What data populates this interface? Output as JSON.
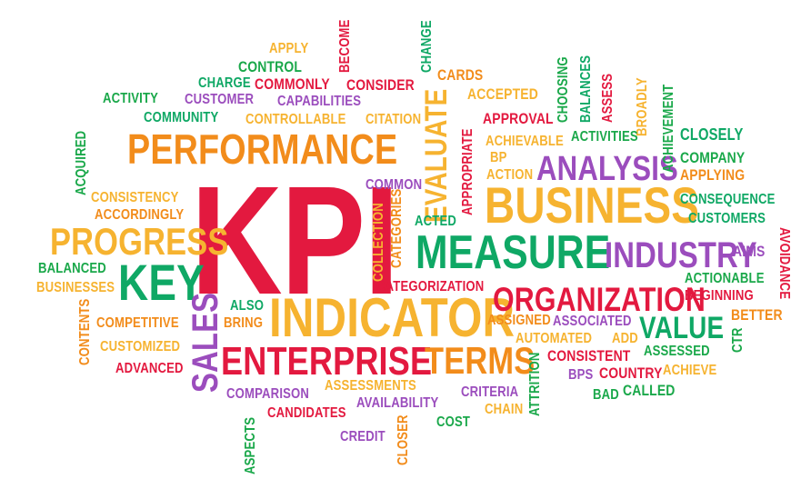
{
  "colors": {
    "green": "#1aa84a",
    "purple": "#9b4dbd",
    "orange": "#f28c1b",
    "red": "#e3193f",
    "gold": "#f6b330",
    "teal": "#0fa865"
  },
  "words": [
    {
      "text": "KPI",
      "color": "red"
    },
    {
      "text": "PERFORMANCE",
      "color": "orange"
    },
    {
      "text": "BUSINESS",
      "color": "gold"
    },
    {
      "text": "MEASURE",
      "color": "teal"
    },
    {
      "text": "INDICATOR",
      "color": "gold"
    },
    {
      "text": "ORGANIZATION",
      "color": "red"
    },
    {
      "text": "ENTERPRISE",
      "color": "red"
    },
    {
      "text": "ANALYSIS",
      "color": "purple"
    },
    {
      "text": "INDUSTRY",
      "color": "purple"
    },
    {
      "text": "PROGRESS",
      "color": "gold"
    },
    {
      "text": "KEY",
      "color": "teal"
    },
    {
      "text": "VALUE",
      "color": "teal"
    },
    {
      "text": "TERMS",
      "color": "orange"
    },
    {
      "text": "SALES",
      "color": "purple"
    },
    {
      "text": "EVALUATE",
      "color": "gold"
    },
    {
      "text": "APPLY",
      "color": "gold"
    },
    {
      "text": "CONTROL",
      "color": "green"
    },
    {
      "text": "CHARGE",
      "color": "teal"
    },
    {
      "text": "COMMONLY",
      "color": "red"
    },
    {
      "text": "CONSIDER",
      "color": "red"
    },
    {
      "text": "BECOME",
      "color": "red"
    },
    {
      "text": "CHANGE",
      "color": "teal"
    },
    {
      "text": "CARDS",
      "color": "orange"
    },
    {
      "text": "ACCEPTED",
      "color": "gold"
    },
    {
      "text": "CHOOSING",
      "color": "green"
    },
    {
      "text": "BALANCES",
      "color": "teal"
    },
    {
      "text": "ASSESS",
      "color": "red"
    },
    {
      "text": "BROADLY",
      "color": "gold"
    },
    {
      "text": "ACHIEVEMENT",
      "color": "green"
    },
    {
      "text": "ACTIVITY",
      "color": "green"
    },
    {
      "text": "CUSTOMER",
      "color": "purple"
    },
    {
      "text": "CAPABILITIES",
      "color": "purple"
    },
    {
      "text": "COMMUNITY",
      "color": "teal"
    },
    {
      "text": "CONTROLLABLE",
      "color": "gold"
    },
    {
      "text": "CITATION",
      "color": "gold"
    },
    {
      "text": "APPROVAL",
      "color": "red"
    },
    {
      "text": "APPROPRIATE",
      "color": "red"
    },
    {
      "text": "ACTIVITIES",
      "color": "green"
    },
    {
      "text": "CLOSELY",
      "color": "teal"
    },
    {
      "text": "ACHIEVABLE",
      "color": "gold"
    },
    {
      "text": "BP",
      "color": "gold"
    },
    {
      "text": "ACTION",
      "color": "gold"
    },
    {
      "text": "COMPANY",
      "color": "green"
    },
    {
      "text": "APPLYING",
      "color": "orange"
    },
    {
      "text": "ACQUIRED",
      "color": "green"
    },
    {
      "text": "CONSISTENCY",
      "color": "gold"
    },
    {
      "text": "ACCORDINGLY",
      "color": "orange"
    },
    {
      "text": "COMMON",
      "color": "purple"
    },
    {
      "text": "ACTED",
      "color": "teal"
    },
    {
      "text": "CONSEQUENCE",
      "color": "teal"
    },
    {
      "text": "CUSTOMERS",
      "color": "teal"
    },
    {
      "text": "CATEGORIES",
      "color": "orange"
    },
    {
      "text": "COLLECTION",
      "color": "gold"
    },
    {
      "text": "AIMS",
      "color": "purple"
    },
    {
      "text": "AVOIDANCE",
      "color": "red"
    },
    {
      "text": "BALANCED",
      "color": "green"
    },
    {
      "text": "BUSINESSES",
      "color": "gold"
    },
    {
      "text": "ACTIONABLE",
      "color": "green"
    },
    {
      "text": "BEGINNING",
      "color": "red"
    },
    {
      "text": "CATEGORIZATION",
      "color": "red"
    },
    {
      "text": "ALSO",
      "color": "teal"
    },
    {
      "text": "BRING",
      "color": "orange"
    },
    {
      "text": "CONTENTS",
      "color": "orange"
    },
    {
      "text": "COMPETITIVE",
      "color": "orange"
    },
    {
      "text": "ASSIGNED",
      "color": "orange"
    },
    {
      "text": "ASSOCIATED",
      "color": "purple"
    },
    {
      "text": "BETTER",
      "color": "orange"
    },
    {
      "text": "CUSTOMIZED",
      "color": "gold"
    },
    {
      "text": "AUTOMATED",
      "color": "gold"
    },
    {
      "text": "ADD",
      "color": "gold"
    },
    {
      "text": "CTR",
      "color": "green"
    },
    {
      "text": "ADVANCED",
      "color": "red"
    },
    {
      "text": "CONSISTENT",
      "color": "red"
    },
    {
      "text": "ASSESSED",
      "color": "green"
    },
    {
      "text": "ATTRITION",
      "color": "green"
    },
    {
      "text": "BPS",
      "color": "purple"
    },
    {
      "text": "COUNTRY",
      "color": "red"
    },
    {
      "text": "ACHIEVE",
      "color": "gold"
    },
    {
      "text": "ASSESSMENTS",
      "color": "gold"
    },
    {
      "text": "COMPARISON",
      "color": "purple"
    },
    {
      "text": "AVAILABILITY",
      "color": "purple"
    },
    {
      "text": "CRITERIA",
      "color": "purple"
    },
    {
      "text": "BAD",
      "color": "green"
    },
    {
      "text": "CALLED",
      "color": "green"
    },
    {
      "text": "CANDIDATES",
      "color": "red"
    },
    {
      "text": "ASPECTS",
      "color": "green"
    },
    {
      "text": "CREDIT",
      "color": "purple"
    },
    {
      "text": "CLOSER",
      "color": "orange"
    },
    {
      "text": "COST",
      "color": "green"
    },
    {
      "text": "CHAIN",
      "color": "gold"
    }
  ]
}
